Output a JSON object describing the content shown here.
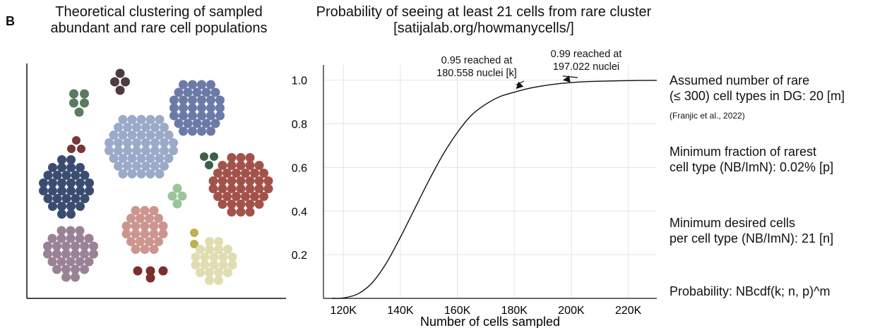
{
  "panel_label": "B",
  "left_panel": {
    "title_line1": "Theoretical clustering of sampled",
    "title_line2": "abundant and rare cell populations"
  },
  "chart_title_line1": "Probability of seeing at least 21 cells from rare cluster",
  "chart_title_line2": "[satijalab.org/howmanycells/]",
  "annotations": [
    {
      "line1": "0.95 reached at",
      "line2": "180.558 nuclei [k]"
    },
    {
      "line1": "0.99 reached at",
      "line2": "197.022 nuclei"
    }
  ],
  "params": {
    "m_line1": "Assumed number of rare",
    "m_line2": "(≤ 300) cell types in DG: 20 [m]",
    "citation": "(Franjic et al., 2022)",
    "p_line1": "Minimum fraction of rarest",
    "p_line2": "cell type (NB/ImN): 0.02% [p]",
    "n_line1": "Minimum desired cells",
    "n_line2": "per cell type (NB/ImN): 21 [n]",
    "formula": "Probability: NBcdf(k; n, p)^m"
  },
  "chart_data": {
    "type": "line",
    "title": "Probability of seeing at least 21 cells from rare cluster",
    "xlabel": "Number of cells sampled",
    "ylabel": "",
    "xlim": [
      113000,
      230000
    ],
    "ylim": [
      0,
      1.07
    ],
    "x_ticks": [
      120000,
      140000,
      160000,
      180000,
      200000,
      220000
    ],
    "x_tick_labels": [
      "120K",
      "140K",
      "160K",
      "180K",
      "200K",
      "220K"
    ],
    "y_ticks": [
      0.2,
      0.4,
      0.6,
      0.8,
      1.0
    ],
    "y_tick_labels": [
      "0.2",
      "0.4",
      "0.6",
      "0.8",
      "1.0"
    ],
    "grid": true,
    "series": [
      {
        "x": [
          116000,
          120000,
          125000,
          130000,
          135000,
          140000,
          145000,
          150000,
          155000,
          160000,
          165000,
          170000,
          175000,
          180000,
          185000,
          190000,
          195000,
          200000,
          205000,
          210000,
          220000,
          230000
        ],
        "y": [
          0.0,
          0.002,
          0.02,
          0.07,
          0.16,
          0.28,
          0.41,
          0.54,
          0.66,
          0.76,
          0.84,
          0.89,
          0.925,
          0.945,
          0.962,
          0.974,
          0.983,
          0.989,
          0.993,
          0.995,
          0.998,
          0.999
        ]
      }
    ],
    "markers": [
      {
        "x": 180558,
        "y": 0.95
      },
      {
        "x": 197022,
        "y": 0.99
      }
    ]
  },
  "clusters": [
    {
      "color": "#5a7b60"
    },
    {
      "color": "#4f3a44"
    },
    {
      "color": "#6c7aa8"
    },
    {
      "color": "#9aaac8"
    },
    {
      "color": "#7a3535"
    },
    {
      "color": "#3a4c70"
    },
    {
      "color": "#3d5e48"
    },
    {
      "color": "#a3524a"
    },
    {
      "color": "#9cc49a"
    },
    {
      "color": "#cc9590"
    },
    {
      "color": "#9a8296"
    },
    {
      "color": "#bdb04f"
    },
    {
      "color": "#e0ddb2"
    },
    {
      "color": "#7a2f2f"
    }
  ]
}
